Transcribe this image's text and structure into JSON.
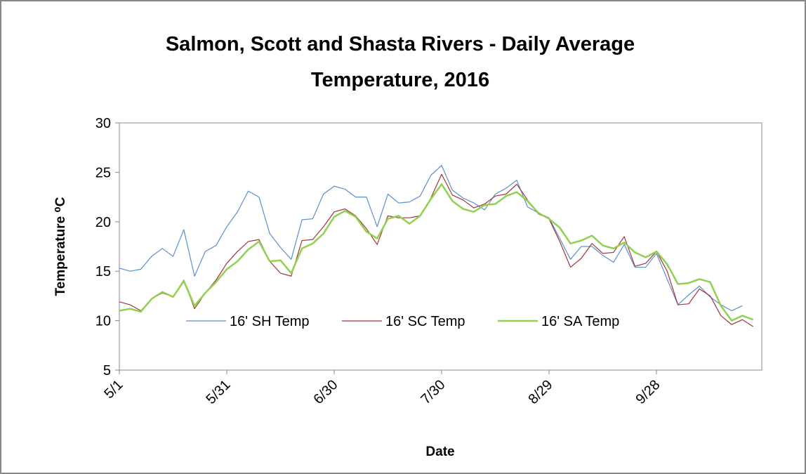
{
  "chart_data": {
    "type": "line",
    "title": [
      "Salmon, Scott and Shasta Rivers - Daily Average",
      "Temperature, 2016"
    ],
    "xlabel": "Date",
    "ylabel": "Temperature ⁰C",
    "x": [
      "5/1",
      "5/4",
      "5/7",
      "5/10",
      "5/13",
      "5/16",
      "5/19",
      "5/22",
      "5/25",
      "5/28",
      "5/31",
      "6/3",
      "6/6",
      "6/9",
      "6/12",
      "6/15",
      "6/18",
      "6/21",
      "6/24",
      "6/27",
      "6/30",
      "7/3",
      "7/6",
      "7/9",
      "7/12",
      "7/15",
      "7/18",
      "7/21",
      "7/24",
      "7/27",
      "7/30",
      "8/2",
      "8/5",
      "8/8",
      "8/11",
      "8/14",
      "8/17",
      "8/20",
      "8/23",
      "8/26",
      "8/29",
      "9/1",
      "9/4",
      "9/7",
      "9/10",
      "9/13",
      "9/16",
      "9/19",
      "9/22",
      "9/25",
      "9/28",
      "10/1",
      "10/4",
      "10/7",
      "10/10",
      "10/13",
      "10/16",
      "10/19",
      "10/22",
      "10/25"
    ],
    "xticks": [
      "5/1",
      "5/31",
      "6/30",
      "7/30",
      "8/29",
      "9/28"
    ],
    "ylim": [
      5,
      30
    ],
    "yticks": [
      5,
      10,
      15,
      20,
      25,
      30
    ],
    "series": [
      {
        "name": "16' SH Temp",
        "color": "#5b8fd0",
        "width": 1.2,
        "values": [
          15.3,
          15.0,
          15.2,
          16.5,
          17.3,
          16.5,
          19.2,
          14.5,
          17,
          17.6,
          19.5,
          21,
          23.1,
          22.5,
          18.8,
          17.4,
          16.2,
          20.2,
          20.3,
          22.8,
          23.6,
          23.3,
          22.5,
          22.5,
          19.5,
          22.8,
          21.9,
          22,
          22.6,
          24.7,
          25.7,
          23.2,
          22.4,
          21.9,
          21.2,
          22.8,
          23.4,
          24.2,
          21.5,
          20.9,
          20.4,
          18.3,
          16.2,
          17.5,
          17.5,
          16.6,
          15.9,
          17.7,
          15.4,
          15.4,
          16.8,
          14.2,
          11.6,
          12.6,
          13.5,
          12.4,
          11.6,
          11.0,
          11.5,
          null
        ]
      },
      {
        "name": "16' SC Temp",
        "color": "#a0363a",
        "width": 1.2,
        "values": [
          11.9,
          11.6,
          11.0,
          12.2,
          12.8,
          12.4,
          14.1,
          11.2,
          12.8,
          14.1,
          15.8,
          17,
          18,
          18.2,
          16,
          14.8,
          14.5,
          18.1,
          18.2,
          19.5,
          21,
          21.3,
          20.6,
          19.3,
          17.7,
          20.6,
          20.4,
          20.4,
          20.6,
          22.4,
          24.8,
          22.7,
          22.2,
          21.4,
          21.8,
          22.6,
          22.8,
          23.8,
          22.2,
          20.8,
          20.3,
          18,
          15.4,
          16.3,
          17.8,
          16.8,
          16.9,
          18.5,
          15.5,
          15.8,
          17,
          15.0,
          11.6,
          11.7,
          13.2,
          12.5,
          10.5,
          9.6,
          10.1,
          9.4
        ]
      },
      {
        "name": "16' SA Temp",
        "color": "#92d050",
        "width": 2.5,
        "values": [
          11.0,
          11.2,
          10.9,
          12.2,
          12.9,
          12.4,
          14,
          11.5,
          12.8,
          13.9,
          15.2,
          16,
          17.2,
          18,
          16,
          16.1,
          14.8,
          17.3,
          17.8,
          18.8,
          20.5,
          21.1,
          20.5,
          19,
          18.3,
          20.3,
          20.6,
          19.8,
          20.6,
          22.3,
          23.8,
          22.1,
          21.3,
          21,
          21.7,
          21.8,
          22.6,
          23,
          22.1,
          20.9,
          20.3,
          19.4,
          17.8,
          18.1,
          18.6,
          17.6,
          17.3,
          17.9,
          16.9,
          16.4,
          17,
          15.7,
          13.7,
          13.8,
          14.2,
          13.9,
          11.5,
          10.0,
          10.5,
          10.1
        ]
      }
    ]
  }
}
